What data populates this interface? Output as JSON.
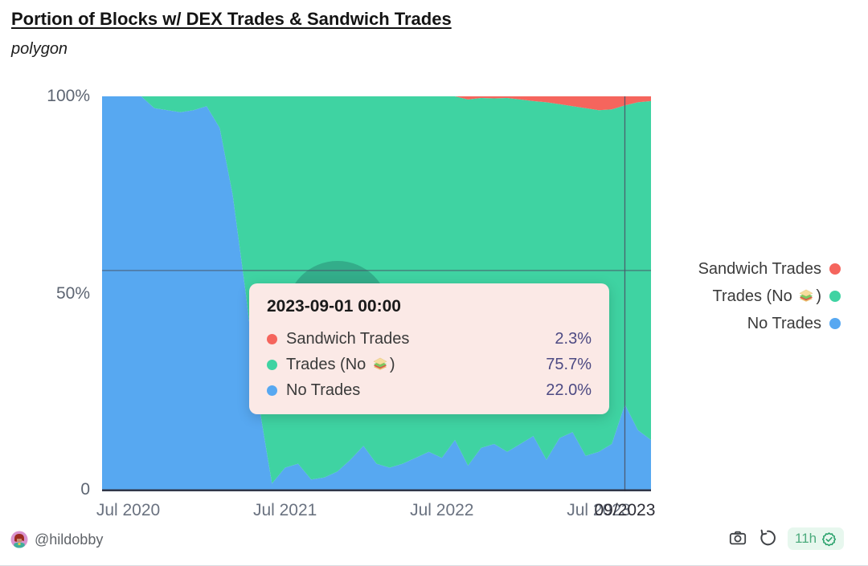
{
  "header": {
    "title": "Portion of Blocks w/ DEX Trades & Sandwich Trades",
    "subtitle": "polygon"
  },
  "y_axis": {
    "labels": [
      "100%",
      "50%",
      "0"
    ]
  },
  "x_axis": {
    "ticks": [
      {
        "label": "Jul 2020",
        "date": "2020-07"
      },
      {
        "label": "Jul 2021",
        "date": "2021-07"
      },
      {
        "label": "Jul 2022",
        "date": "2022-07"
      },
      {
        "label": "Jul 2023",
        "date": "2023-07"
      }
    ],
    "pointer_label": {
      "text": "09/2023",
      "date": "2023-09"
    }
  },
  "legend": {
    "items": [
      {
        "label": "Sandwich Trades",
        "color": "#f5655d"
      },
      {
        "label": "Trades (No 🥪)",
        "color": "#3fd3a2"
      },
      {
        "label": "No Trades",
        "color": "#57a8f1"
      }
    ]
  },
  "tooltip": {
    "title": "2023-09-01 00:00",
    "rows": [
      {
        "label": "Sandwich Trades",
        "value": "2.3%",
        "color": "#f5655d"
      },
      {
        "label": "Trades (No 🥪)",
        "value": "75.7%",
        "color": "#3fd3a2"
      },
      {
        "label": "No Trades",
        "value": "22.0%",
        "color": "#57a8f1"
      }
    ]
  },
  "footer": {
    "handle": "@hildobby",
    "freshness": "11h"
  },
  "colors": {
    "sandwich": "#f5655d",
    "trades": "#3fd3a2",
    "no_trades": "#57a8f1",
    "tooltip_bg": "#fbe9e6",
    "tooltip_value": "#4d4a83",
    "badge_bg": "#e7f7ee",
    "badge_text": "#4cab7d",
    "axis_line": "#30303e"
  },
  "chart_data": {
    "type": "area",
    "stacked": true,
    "unit": "percent",
    "title": "Portion of Blocks w/ DEX Trades & Sandwich Trades",
    "network": "polygon",
    "ylim": [
      0,
      100
    ],
    "y_ticks": [
      "0",
      "50%",
      "100%"
    ],
    "legend_position": "right",
    "grid": false,
    "x": [
      "2020-05",
      "2020-06",
      "2020-07",
      "2020-08",
      "2020-09",
      "2020-10",
      "2020-11",
      "2020-12",
      "2021-01",
      "2021-02",
      "2021-03",
      "2021-04",
      "2021-05",
      "2021-06",
      "2021-07",
      "2021-08",
      "2021-09",
      "2021-10",
      "2021-11",
      "2021-12",
      "2022-01",
      "2022-02",
      "2022-03",
      "2022-04",
      "2022-05",
      "2022-06",
      "2022-07",
      "2022-08",
      "2022-09",
      "2022-10",
      "2022-11",
      "2022-12",
      "2023-01",
      "2023-02",
      "2023-03",
      "2023-04",
      "2023-05",
      "2023-06",
      "2023-07",
      "2023-08",
      "2023-09",
      "2023-10",
      "2023-11"
    ],
    "series": [
      {
        "name": "Sandwich Trades",
        "color": "#f5655d",
        "values": [
          0,
          0,
          0,
          0,
          0,
          0,
          0,
          0,
          0,
          0,
          0,
          0,
          0,
          0,
          0,
          0,
          0,
          0,
          0,
          0,
          0,
          0,
          0,
          0,
          0,
          0,
          0,
          0,
          0.8,
          0.4,
          0.5,
          0.4,
          0.8,
          1.2,
          1.5,
          2.0,
          2.5,
          3.0,
          3.5,
          3.3,
          2.3,
          1.5,
          1.2
        ]
      },
      {
        "name": "Trades (No 🥪)",
        "color": "#3fd3a2",
        "values": [
          0,
          0,
          0,
          0,
          3,
          3.5,
          4,
          3.5,
          2.5,
          8,
          25,
          50,
          78,
          98,
          94,
          93,
          97,
          96.5,
          95,
          92,
          88.5,
          93,
          94,
          93,
          91.5,
          90,
          91.5,
          87,
          92.7,
          88.6,
          87.5,
          89.6,
          87.2,
          84.8,
          90.5,
          84.5,
          82.5,
          88,
          86.5,
          84.7,
          75.7,
          83,
          85.8
        ]
      },
      {
        "name": "No Trades",
        "color": "#57a8f1",
        "values": [
          100,
          100,
          100,
          100,
          97,
          96.5,
          96,
          96.5,
          97.5,
          92,
          75,
          50,
          22,
          2,
          6,
          7,
          3,
          3.5,
          5,
          8,
          11.5,
          7,
          6,
          7,
          8.5,
          10,
          8.5,
          13,
          6.5,
          11,
          12,
          10,
          12,
          14,
          8,
          13.5,
          15,
          9,
          10,
          12,
          22,
          15.5,
          13
        ]
      }
    ],
    "pointer": {
      "x_date": "2023-09-01",
      "x_label": "09/2023",
      "y_percent": 55.9,
      "values_at_pointer": {
        "Sandwich Trades": 2.3,
        "Trades (No 🥪)": 75.7,
        "No Trades": 22.0
      }
    }
  }
}
